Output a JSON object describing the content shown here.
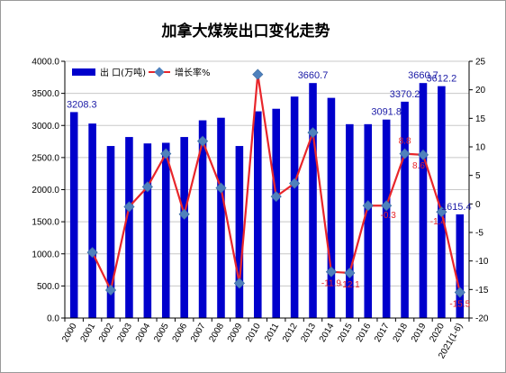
{
  "chart_data": {
    "type": "bar+line",
    "title": "加拿大煤炭出口变化走势",
    "categories": [
      "2000",
      "2001",
      "2002",
      "2003",
      "2004",
      "2005",
      "2006",
      "2007",
      "2008",
      "2009",
      "2010",
      "2011",
      "2012",
      "2013",
      "2014",
      "2015",
      "2016",
      "2017",
      "2018",
      "2019",
      "2020",
      "2021(1-6)"
    ],
    "series": [
      {
        "name": "出 口(万吨)",
        "type": "bar",
        "axis": "left",
        "color": "#0000cc",
        "values": [
          3208.3,
          3030,
          2680,
          2820,
          2720,
          2730,
          2820,
          3080,
          3120,
          2680,
          3220,
          3260,
          3450,
          3660.7,
          3430,
          3020,
          3020,
          3091.8,
          3370.2,
          3660.7,
          3612.2,
          1615.4
        ]
      },
      {
        "name": "增长率%",
        "type": "line",
        "axis": "right",
        "color": "#e8262b",
        "marker_color": "#4f81bd",
        "values": [
          null,
          -8.5,
          -15.1,
          -0.5,
          3.0,
          8.8,
          -1.8,
          11.0,
          2.8,
          -13.9,
          22.7,
          1.3,
          3.6,
          12.5,
          -11.9,
          -12.1,
          -0.3,
          -0.3,
          8.8,
          8.6,
          -1.4,
          -15.5
        ]
      }
    ],
    "bar_labels": [
      {
        "index": 0,
        "text": "3208.3"
      },
      {
        "index": 13,
        "text": "3660.7"
      },
      {
        "index": 17,
        "text": "3091.8"
      },
      {
        "index": 18,
        "text": "3370.2"
      },
      {
        "index": 19,
        "text": "3660.7"
      },
      {
        "index": 20,
        "text": "3612.2"
      },
      {
        "index": 21,
        "text": "1615.4"
      }
    ],
    "line_labels": [
      {
        "index": 14,
        "text": "-11.9"
      },
      {
        "index": 15,
        "text": "-12.1"
      },
      {
        "index": 17,
        "text": "-0.3"
      },
      {
        "index": 18,
        "text": "8.8"
      },
      {
        "index": 19,
        "text": "8.6"
      },
      {
        "index": 20,
        "text": "-1.4"
      },
      {
        "index": 21,
        "text": "-15.5"
      }
    ],
    "y_left": {
      "min": 0,
      "max": 4000,
      "step": 500,
      "tick_labels": [
        "0.0",
        "500.0",
        "1000.0",
        "1500.0",
        "2000.0",
        "2500.0",
        "3000.0",
        "3500.0",
        "4000.0"
      ]
    },
    "y_right": {
      "min": -20,
      "max": 25,
      "step": 5,
      "tick_labels": [
        "-20",
        "-15",
        "-10",
        "-5",
        "0",
        "5",
        "10",
        "15",
        "20",
        "25"
      ]
    },
    "grid": true,
    "legend_position": "top-left"
  }
}
